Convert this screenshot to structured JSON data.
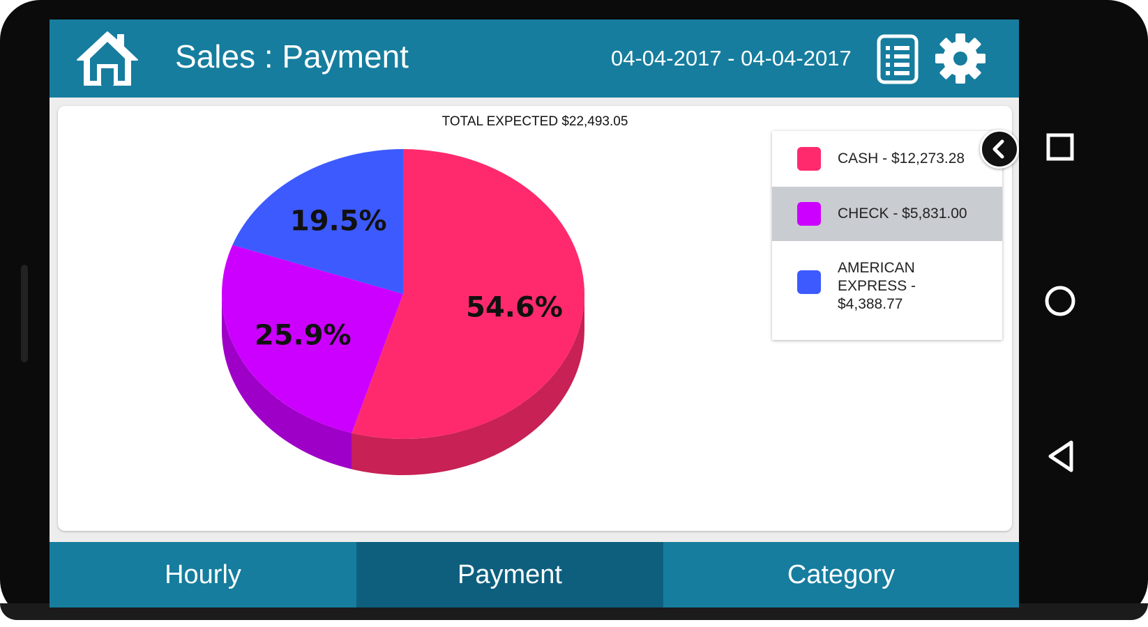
{
  "app_bar": {
    "title": "Sales : Payment",
    "date_range": "04-04-2017 - 04-04-2017",
    "icons": [
      "home-icon",
      "report-icon",
      "gear-icon"
    ]
  },
  "chart_data": {
    "type": "pie",
    "title": "TOTAL EXPECTED $22,493.05",
    "categories": [
      "CASH",
      "CHECK",
      "AMERICAN EXPRESS"
    ],
    "values": [
      12273.28,
      5831.0,
      4388.77
    ],
    "percent_labels": [
      "54.6%",
      "25.9%",
      "19.5%"
    ],
    "colors": [
      "#ff2a6d",
      "#cc00ff",
      "#3d5afe"
    ],
    "legend_placement": "right"
  },
  "legend": {
    "items": [
      {
        "label": "CASH - $12,273.28",
        "color": "#ff2a6d",
        "selected": false
      },
      {
        "label": "CHECK - $5,831.00",
        "color": "#cc00ff",
        "selected": true
      },
      {
        "label": "AMERICAN EXPRESS - $4,388.77",
        "color": "#3d5afe",
        "selected": false
      }
    ]
  },
  "tabs": [
    {
      "label": "Hourly",
      "active": false
    },
    {
      "label": "Payment",
      "active": true
    },
    {
      "label": "Category",
      "active": false
    }
  ],
  "colors": {
    "header": "#167d9e",
    "tab_active": "#0e5f7e",
    "legend_selected": "#c9ccd1"
  }
}
